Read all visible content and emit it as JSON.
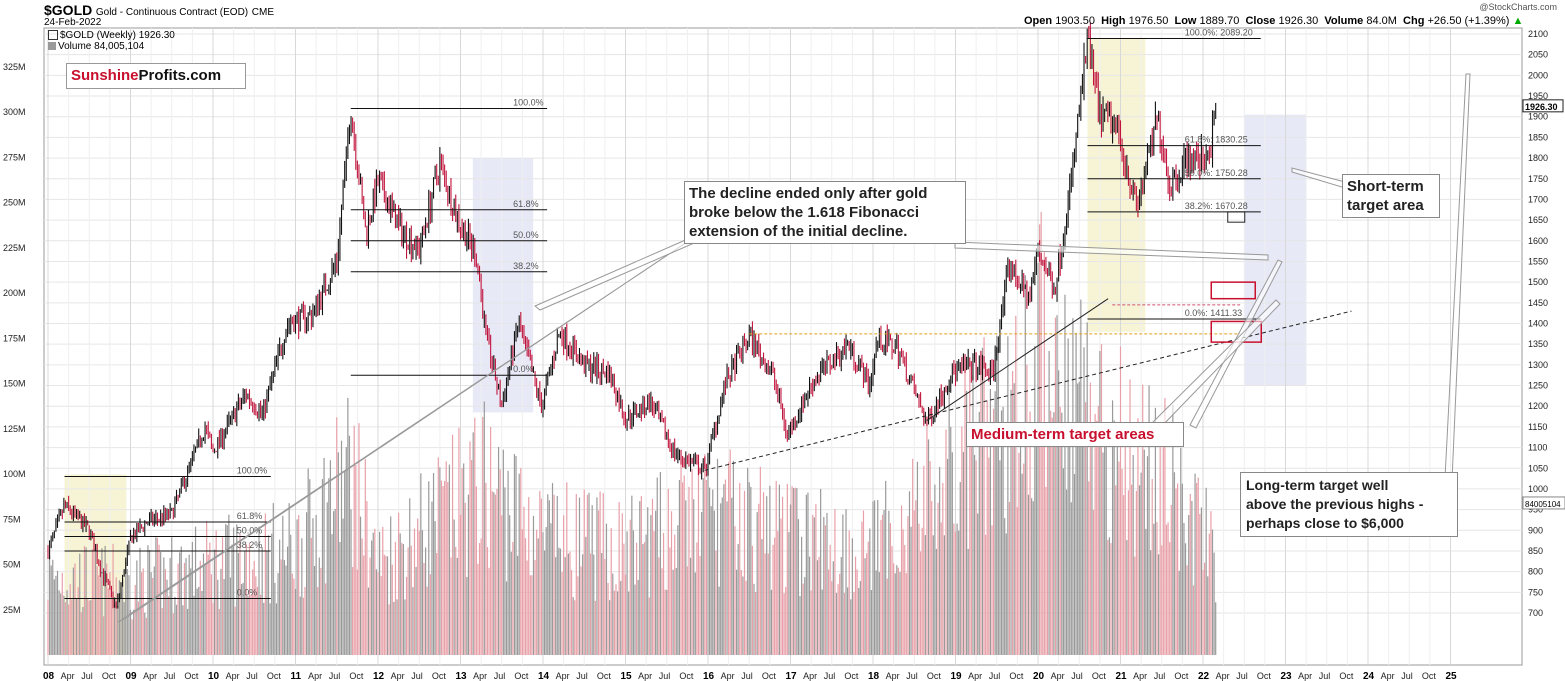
{
  "header": {
    "symbol": "$GOLD",
    "description": "Gold - Continuous Contract (EOD)",
    "exchange": "CME",
    "date": "24-Feb-2022",
    "series_label": "$GOLD (Weekly) 1926.30",
    "volume_label": "Volume 84,005,104",
    "watermark": "@StockCharts.com",
    "open_label": "Open",
    "open": "1903.50",
    "high_label": "High",
    "high": "1976.50",
    "low_label": "Low",
    "low": "1889.70",
    "close_label": "Close",
    "close": "1926.30",
    "volume_key": "Volume",
    "volume": "84.0M",
    "chg_label": "Chg",
    "chg": "+26.50 (+1.39%)"
  },
  "logo": {
    "part1": "Sunshine",
    "part2": "Profits.com"
  },
  "annotations": {
    "decline": [
      "The decline ended only after gold",
      "broke below the 1.618 Fibonacci",
      "extension of the initial decline."
    ],
    "short_term": [
      "Short-term",
      "target area"
    ],
    "medium_term": "Medium-term target areas",
    "long_term": [
      "Long-term target well",
      "above the previous highs -",
      "perhaps close to $6,000"
    ]
  },
  "colors": {
    "up": "#111111",
    "down": "#c0143c",
    "vol_up": "#9a9a9a",
    "vol_down": "#e8a0a8",
    "accent": "#c8102e"
  },
  "chart_data": {
    "type": "candlestick",
    "price_axis": {
      "ticks": [
        2100,
        2050,
        2000,
        1950,
        1900,
        1850,
        1800,
        1750,
        1700,
        1650,
        1600,
        1550,
        1500,
        1450,
        1400,
        1350,
        1300,
        1250,
        1200,
        1150,
        1100,
        1050,
        1000,
        950,
        900,
        850,
        800,
        750,
        700
      ],
      "last_label": "1926.30",
      "volume_tag": "84005104"
    },
    "volume_axis": {
      "ticks": [
        "325M",
        "300M",
        "275M",
        "250M",
        "225M",
        "200M",
        "175M",
        "150M",
        "125M",
        "100M",
        "75M",
        "50M",
        "25M"
      ]
    },
    "x_axis": {
      "years": [
        {
          "label": "08",
          "t": 2008
        },
        {
          "label": "09",
          "t": 2009
        },
        {
          "label": "10",
          "t": 2010
        },
        {
          "label": "11",
          "t": 2011
        },
        {
          "label": "12",
          "t": 2012
        },
        {
          "label": "13",
          "t": 2013
        },
        {
          "label": "14",
          "t": 2014
        },
        {
          "label": "15",
          "t": 2015
        },
        {
          "label": "16",
          "t": 2016
        },
        {
          "label": "17",
          "t": 2017
        },
        {
          "label": "18",
          "t": 2018
        },
        {
          "label": "19",
          "t": 2019
        },
        {
          "label": "20",
          "t": 2020
        },
        {
          "label": "21",
          "t": 2021
        },
        {
          "label": "22",
          "t": 2022
        },
        {
          "label": "23",
          "t": 2023
        },
        {
          "label": "24",
          "t": 2024
        },
        {
          "label": "25",
          "t": 2025
        }
      ],
      "months": [
        "Apr",
        "Jul",
        "Oct"
      ]
    },
    "price_path": [
      [
        2008.0,
        850
      ],
      [
        2008.2,
        960
      ],
      [
        2008.5,
        900
      ],
      [
        2008.65,
        800
      ],
      [
        2008.83,
        712
      ],
      [
        2009.0,
        880
      ],
      [
        2009.2,
        920
      ],
      [
        2009.5,
        940
      ],
      [
        2009.9,
        1150
      ],
      [
        2010.0,
        1090
      ],
      [
        2010.4,
        1230
      ],
      [
        2010.6,
        1180
      ],
      [
        2010.9,
        1400
      ],
      [
        2011.2,
        1420
      ],
      [
        2011.5,
        1550
      ],
      [
        2011.67,
        1920
      ],
      [
        2011.85,
        1620
      ],
      [
        2012.0,
        1740
      ],
      [
        2012.3,
        1620
      ],
      [
        2012.5,
        1580
      ],
      [
        2012.75,
        1790
      ],
      [
        2012.95,
        1660
      ],
      [
        2013.2,
        1560
      ],
      [
        2013.3,
        1380
      ],
      [
        2013.5,
        1200
      ],
      [
        2013.7,
        1400
      ],
      [
        2013.98,
        1200
      ],
      [
        2014.2,
        1380
      ],
      [
        2014.5,
        1300
      ],
      [
        2014.8,
        1280
      ],
      [
        2015.0,
        1170
      ],
      [
        2015.3,
        1210
      ],
      [
        2015.6,
        1085
      ],
      [
        2015.96,
        1045
      ],
      [
        2016.2,
        1250
      ],
      [
        2016.5,
        1370
      ],
      [
        2016.8,
        1270
      ],
      [
        2016.96,
        1130
      ],
      [
        2017.3,
        1270
      ],
      [
        2017.7,
        1350
      ],
      [
        2017.96,
        1250
      ],
      [
        2018.05,
        1360
      ],
      [
        2018.3,
        1340
      ],
      [
        2018.65,
        1160
      ],
      [
        2018.96,
        1280
      ],
      [
        2019.2,
        1300
      ],
      [
        2019.45,
        1280
      ],
      [
        2019.65,
        1540
      ],
      [
        2019.9,
        1460
      ],
      [
        2020.0,
        1580
      ],
      [
        2020.2,
        1480
      ],
      [
        2020.4,
        1740
      ],
      [
        2020.6,
        2089
      ],
      [
        2020.75,
        1900
      ],
      [
        2020.95,
        1880
      ],
      [
        2021.2,
        1680
      ],
      [
        2021.45,
        1900
      ],
      [
        2021.6,
        1730
      ],
      [
        2021.8,
        1800
      ],
      [
        2021.95,
        1790
      ],
      [
        2022.1,
        1830
      ],
      [
        2022.16,
        1926
      ]
    ],
    "volume_peaks": [
      [
        2008.0,
        60
      ],
      [
        2009.0,
        55
      ],
      [
        2010.0,
        70
      ],
      [
        2011.0,
        80
      ],
      [
        2011.67,
        140
      ],
      [
        2012.0,
        70
      ],
      [
        2013.3,
        130
      ],
      [
        2014.0,
        90
      ],
      [
        2015.0,
        80
      ],
      [
        2016.0,
        110
      ],
      [
        2017.0,
        90
      ],
      [
        2018.0,
        80
      ],
      [
        2019.5,
        170
      ],
      [
        2020.2,
        240
      ],
      [
        2020.5,
        200
      ],
      [
        2021.0,
        160
      ],
      [
        2021.5,
        140
      ],
      [
        2022.1,
        80
      ]
    ],
    "fib_levels": [
      {
        "label": "100.0%",
        "price": 1030,
        "t0": 2008.2,
        "t1": 2010.7
      },
      {
        "label": "61.8%",
        "price": 920,
        "t0": 2008.2,
        "t1": 2010.7
      },
      {
        "label": "50.0%",
        "price": 885,
        "t0": 2008.2,
        "t1": 2010.7
      },
      {
        "label": "38.2%",
        "price": 850,
        "t0": 2008.2,
        "t1": 2010.7
      },
      {
        "label": "0.0%",
        "price": 735,
        "t0": 2008.2,
        "t1": 2010.7
      },
      {
        "label": "100.0%",
        "price": 1920,
        "t0": 2011.67,
        "t1": 2014.05
      },
      {
        "label": "61.8%",
        "price": 1675,
        "t0": 2011.67,
        "t1": 2014.05
      },
      {
        "label": "50.0%",
        "price": 1600,
        "t0": 2011.67,
        "t1": 2014.05
      },
      {
        "label": "38.2%",
        "price": 1525,
        "t0": 2011.67,
        "t1": 2014.05
      },
      {
        "label": "0.0%",
        "price": 1275,
        "t0": 2011.67,
        "t1": 2014.05
      },
      {
        "label": "100.0%: 2089.20",
        "price": 2089,
        "t0": 2020.6,
        "t1": 2022.7
      },
      {
        "label": "61.8%: 1830.25",
        "price": 1830,
        "t0": 2020.6,
        "t1": 2022.7
      },
      {
        "label": "50.0%: 1750.28",
        "price": 1750,
        "t0": 2020.6,
        "t1": 2022.7
      },
      {
        "label": "38.2%: 1670.28",
        "price": 1670,
        "t0": 2020.6,
        "t1": 2022.7
      },
      {
        "label": "0.0%: 1411.33",
        "price": 1411,
        "t0": 2020.6,
        "t1": 2022.7
      }
    ]
  }
}
